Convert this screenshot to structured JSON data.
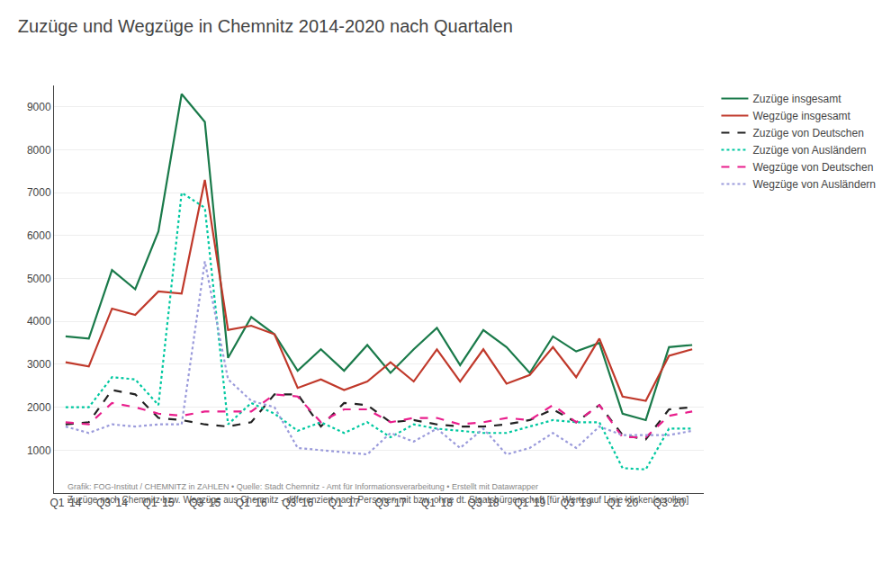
{
  "chart_data": {
    "type": "line",
    "title": "Zuzüge und Wegzüge in Chemnitz 2014-2020 nach Quartalen",
    "subtitle": "Zuzüge nach Chemnitz bzw. Wegzüge aus Chemnitz - differenziert nach Personen mit bzw. ohne dt. Staatsbürgerschaft [für Werte auf Linie klicken/scrollen]",
    "annotations": [
      "Grafik: FOG-Institut / CHEMNITZ in ZAHLEN • Quelle: Stadt Chemnitz - Amt für Informationsverarbeitung • Erstellt mit Datawrapper"
    ],
    "categories": [
      "Q1 '14",
      null,
      "Q3 '14",
      null,
      "Q1 '15",
      null,
      "Q3 '15",
      null,
      "Q1 '16",
      null,
      "Q3 '16",
      null,
      "Q1 '17",
      null,
      "Q3 '17",
      null,
      "Q1 '18",
      null,
      "Q3 '18",
      null,
      "Q1 '19",
      null,
      "Q3 '19",
      null,
      "Q1 '20",
      null,
      "Q3 '20",
      null
    ],
    "series": [
      {
        "name": "Zuzüge insgesamt",
        "color": "#1a7a4a",
        "line_style": "solid",
        "values": [
          3650,
          3600,
          5200,
          4750,
          6100,
          9300,
          8650,
          3150,
          4100,
          3700,
          2850,
          3350,
          2850,
          3450,
          2800,
          3350,
          3850,
          2980,
          3800,
          3400,
          2800,
          3650,
          3300,
          3500,
          1850,
          1700,
          3400,
          3450
        ]
      },
      {
        "name": "Wegzüge insgesamt",
        "color": "#c0392b",
        "line_style": "solid",
        "values": [
          3050,
          2950,
          4300,
          4150,
          4700,
          4650,
          7300,
          3800,
          3900,
          3700,
          2450,
          2650,
          2400,
          2600,
          3050,
          2600,
          3350,
          2600,
          3350,
          2550,
          2750,
          3400,
          2700,
          3600,
          2250,
          2150,
          3200,
          3350
        ]
      },
      {
        "name": "Zuzüge von Deutschen",
        "color": "#222222",
        "line_style": "dashed",
        "values": [
          1600,
          1650,
          2400,
          2300,
          1750,
          1700,
          1600,
          1550,
          1650,
          2300,
          2300,
          1550,
          2100,
          2050,
          1650,
          1700,
          1600,
          1550,
          1550,
          1600,
          1700,
          1950,
          1650,
          2050,
          1350,
          1250,
          1950,
          2000
        ]
      },
      {
        "name": "Zuzüge von Ausländern",
        "color": "#00c8a0",
        "line_style": "dotted",
        "values": [
          2000,
          2000,
          2700,
          2650,
          2050,
          7000,
          6650,
          1600,
          2100,
          1850,
          1450,
          1650,
          1400,
          1650,
          1300,
          1600,
          1500,
          1450,
          1400,
          1400,
          1550,
          1700,
          1650,
          1650,
          580,
          550,
          1500,
          1500
        ]
      },
      {
        "name": "Wegzüge von Deutschen",
        "color": "#e91e8c",
        "line_style": "dashed",
        "values": [
          1650,
          1600,
          2100,
          2000,
          1850,
          1800,
          1900,
          1900,
          1900,
          2300,
          2250,
          1650,
          1950,
          1950,
          1650,
          1750,
          1750,
          1600,
          1650,
          1750,
          1700,
          2050,
          1650,
          2050,
          1300,
          1300,
          1800,
          1900
        ]
      },
      {
        "name": "Wegzüge von Ausländern",
        "color": "#9b9bdb",
        "line_style": "dotted",
        "values": [
          1550,
          1400,
          1600,
          1550,
          1600,
          1600,
          5400,
          2650,
          2150,
          2000,
          1050,
          1000,
          950,
          900,
          1400,
          1200,
          1500,
          1050,
          1500,
          900,
          1050,
          1400,
          1050,
          1550,
          1350,
          1350,
          1350,
          1450
        ]
      }
    ],
    "ylim": [
      0,
      9500
    ],
    "yticks": [
      1000,
      2000,
      3000,
      4000,
      5000,
      6000,
      7000,
      8000,
      9000
    ],
    "grid": true,
    "legend": "right"
  }
}
